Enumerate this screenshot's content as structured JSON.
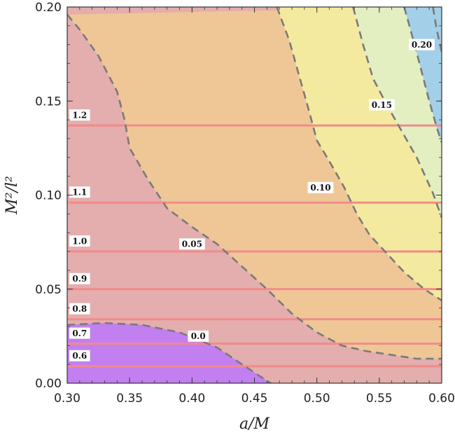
{
  "chart_data": {
    "type": "contour",
    "xlabel": "a/M",
    "ylabel": "M²/l²",
    "xlim": [
      0.3,
      0.6
    ],
    "ylim": [
      0.0,
      0.2
    ],
    "x_ticks": [
      "0.30",
      "0.35",
      "0.40",
      "0.45",
      "0.50",
      "0.55",
      "0.60"
    ],
    "y_ticks": [
      "0.00",
      "0.05",
      "0.10",
      "0.15",
      "0.20"
    ],
    "filled_regions": [
      {
        "range": "< 0.0",
        "color": "#c27ff0"
      },
      {
        "range": "0.0 – 0.05",
        "color": "#e3aead"
      },
      {
        "range": "0.05 – 0.10",
        "color": "#efc797"
      },
      {
        "range": "0.10 – 0.15",
        "color": "#f4ea9f"
      },
      {
        "range": "0.15 – 0.20",
        "color": "#e3efc0"
      },
      {
        "range": "> 0.20",
        "color": "#a3cfe9"
      }
    ],
    "dashed_contours": [
      {
        "label": "0.0",
        "label_at": [
          0.405,
          0.025
        ],
        "points": [
          [
            0.3,
            0.031
          ],
          [
            0.33,
            0.032
          ],
          [
            0.36,
            0.031
          ],
          [
            0.39,
            0.027
          ],
          [
            0.42,
            0.019
          ],
          [
            0.44,
            0.01
          ],
          [
            0.456,
            0.003
          ],
          [
            0.47,
            -0.003
          ]
        ]
      },
      {
        "label": "0.05",
        "label_at": [
          0.4,
          0.074
        ],
        "points": [
          [
            0.3,
            0.196
          ],
          [
            0.31,
            0.188
          ],
          [
            0.325,
            0.174
          ],
          [
            0.34,
            0.155
          ],
          [
            0.346,
            0.14
          ],
          [
            0.35,
            0.125
          ],
          [
            0.365,
            0.108
          ],
          [
            0.38,
            0.093
          ],
          [
            0.4,
            0.083
          ],
          [
            0.42,
            0.074
          ],
          [
            0.44,
            0.062
          ],
          [
            0.46,
            0.05
          ],
          [
            0.48,
            0.037
          ],
          [
            0.5,
            0.027
          ],
          [
            0.52,
            0.02
          ],
          [
            0.54,
            0.017
          ],
          [
            0.56,
            0.015
          ],
          [
            0.58,
            0.013
          ],
          [
            0.6,
            0.013
          ]
        ]
      },
      {
        "label": "0.10",
        "label_at": [
          0.503,
          0.104
        ],
        "points": [
          [
            0.468,
            0.2
          ],
          [
            0.478,
            0.182
          ],
          [
            0.486,
            0.163
          ],
          [
            0.494,
            0.144
          ],
          [
            0.5,
            0.129
          ],
          [
            0.51,
            0.118
          ],
          [
            0.522,
            0.104
          ],
          [
            0.532,
            0.09
          ],
          [
            0.542,
            0.079
          ],
          [
            0.556,
            0.069
          ],
          [
            0.57,
            0.059
          ],
          [
            0.586,
            0.05
          ],
          [
            0.6,
            0.044
          ]
        ]
      },
      {
        "label": "0.15",
        "label_at": [
          0.552,
          0.148
        ],
        "points": [
          [
            0.529,
            0.2
          ],
          [
            0.537,
            0.18
          ],
          [
            0.545,
            0.162
          ],
          [
            0.556,
            0.148
          ],
          [
            0.568,
            0.134
          ],
          [
            0.58,
            0.12
          ],
          [
            0.593,
            0.101
          ],
          [
            0.6,
            0.088
          ]
        ]
      },
      {
        "label": "0.20",
        "label_at": [
          0.584,
          0.18
        ],
        "points": [
          [
            0.57,
            0.2
          ],
          [
            0.577,
            0.183
          ],
          [
            0.583,
            0.168
          ],
          [
            0.59,
            0.15
          ],
          [
            0.596,
            0.136
          ],
          [
            0.6,
            0.128
          ]
        ]
      },
      {
        "points": [
          [
            0.593,
            0.2
          ],
          [
            0.596,
            0.188
          ],
          [
            0.6,
            0.176
          ]
        ]
      }
    ],
    "horizontal_lines": [
      {
        "label": "1.2",
        "y": 0.137
      },
      {
        "label": "1.1",
        "y": 0.096
      },
      {
        "label": "1.0",
        "y": 0.07
      },
      {
        "label": "0.9",
        "y": 0.05
      },
      {
        "label": "0.8",
        "y": 0.034
      },
      {
        "label": "0.7",
        "y": 0.021
      },
      {
        "label": "0.6",
        "y": 0.009
      }
    ],
    "horizontal_line_label_x": 0.31,
    "colors": {
      "dashed_contour": "#7a7a7a",
      "horizontal_line": "#f28a8a",
      "frame": "#333333",
      "label_box": "#ffffff"
    }
  }
}
